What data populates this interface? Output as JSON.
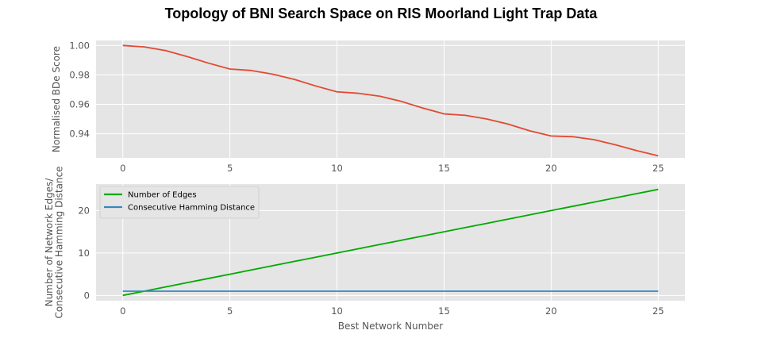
{
  "figure": {
    "title": "Topology of BNI Search Space on RIS Moorland Light Trap Data"
  },
  "chart_data": [
    {
      "type": "line",
      "title": "",
      "xlabel": "",
      "ylabel": "Normalised BDe Score",
      "xlim": [
        -1.25,
        26.25
      ],
      "ylim": [
        0.9236,
        1.0034
      ],
      "xticks": [
        0,
        5,
        10,
        15,
        20,
        25
      ],
      "yticks": [
        0.94,
        0.96,
        0.98,
        1.0
      ],
      "ytick_labels": [
        "0.94",
        "0.96",
        "0.98",
        "1.00"
      ],
      "grid": true,
      "legend": "none",
      "series": [
        {
          "color": "#e24a33",
          "x": [
            0,
            1,
            2,
            3,
            4,
            5,
            6,
            7,
            8,
            9,
            10,
            11,
            12,
            13,
            14,
            15,
            16,
            17,
            18,
            19,
            20,
            21,
            22,
            23,
            24,
            25
          ],
          "values": [
            1.0,
            0.999,
            0.9965,
            0.9925,
            0.988,
            0.984,
            0.983,
            0.9805,
            0.977,
            0.9725,
            0.9685,
            0.9675,
            0.9655,
            0.962,
            0.9575,
            0.9535,
            0.9525,
            0.95,
            0.9465,
            0.942,
            0.9385,
            0.938,
            0.936,
            0.9325,
            0.9285,
            0.925
          ]
        }
      ]
    },
    {
      "type": "line",
      "title": "",
      "xlabel": "Best Network Number",
      "ylabel": "Number of Network Edges/\nConsecutive Hamming Distance",
      "xlim": [
        -1.25,
        26.25
      ],
      "ylim": [
        -1.25,
        26.25
      ],
      "xticks": [
        0,
        5,
        10,
        15,
        20,
        25
      ],
      "yticks": [
        0,
        10,
        20
      ],
      "ytick_labels": [
        "0",
        "10",
        "20"
      ],
      "grid": true,
      "legend": "top-left",
      "series": [
        {
          "name": "Number of Edges",
          "color": "#00aa00",
          "x": [
            0,
            1,
            2,
            3,
            4,
            5,
            6,
            7,
            8,
            9,
            10,
            11,
            12,
            13,
            14,
            15,
            16,
            17,
            18,
            19,
            20,
            21,
            22,
            23,
            24,
            25
          ],
          "values": [
            0,
            1,
            2,
            3,
            4,
            5,
            6,
            7,
            8,
            9,
            10,
            11,
            12,
            13,
            14,
            15,
            16,
            17,
            18,
            19,
            20,
            21,
            22,
            23,
            24,
            25
          ]
        },
        {
          "name": "Consecutive Hamming Distance",
          "color": "#348abd",
          "x": [
            0,
            1,
            2,
            3,
            4,
            5,
            6,
            7,
            8,
            9,
            10,
            11,
            12,
            13,
            14,
            15,
            16,
            17,
            18,
            19,
            20,
            21,
            22,
            23,
            24,
            25
          ],
          "values": [
            1,
            1,
            1,
            1,
            1,
            1,
            1,
            1,
            1,
            1,
            1,
            1,
            1,
            1,
            1,
            1,
            1,
            1,
            1,
            1,
            1,
            1,
            1,
            1,
            1,
            1
          ]
        }
      ]
    }
  ]
}
